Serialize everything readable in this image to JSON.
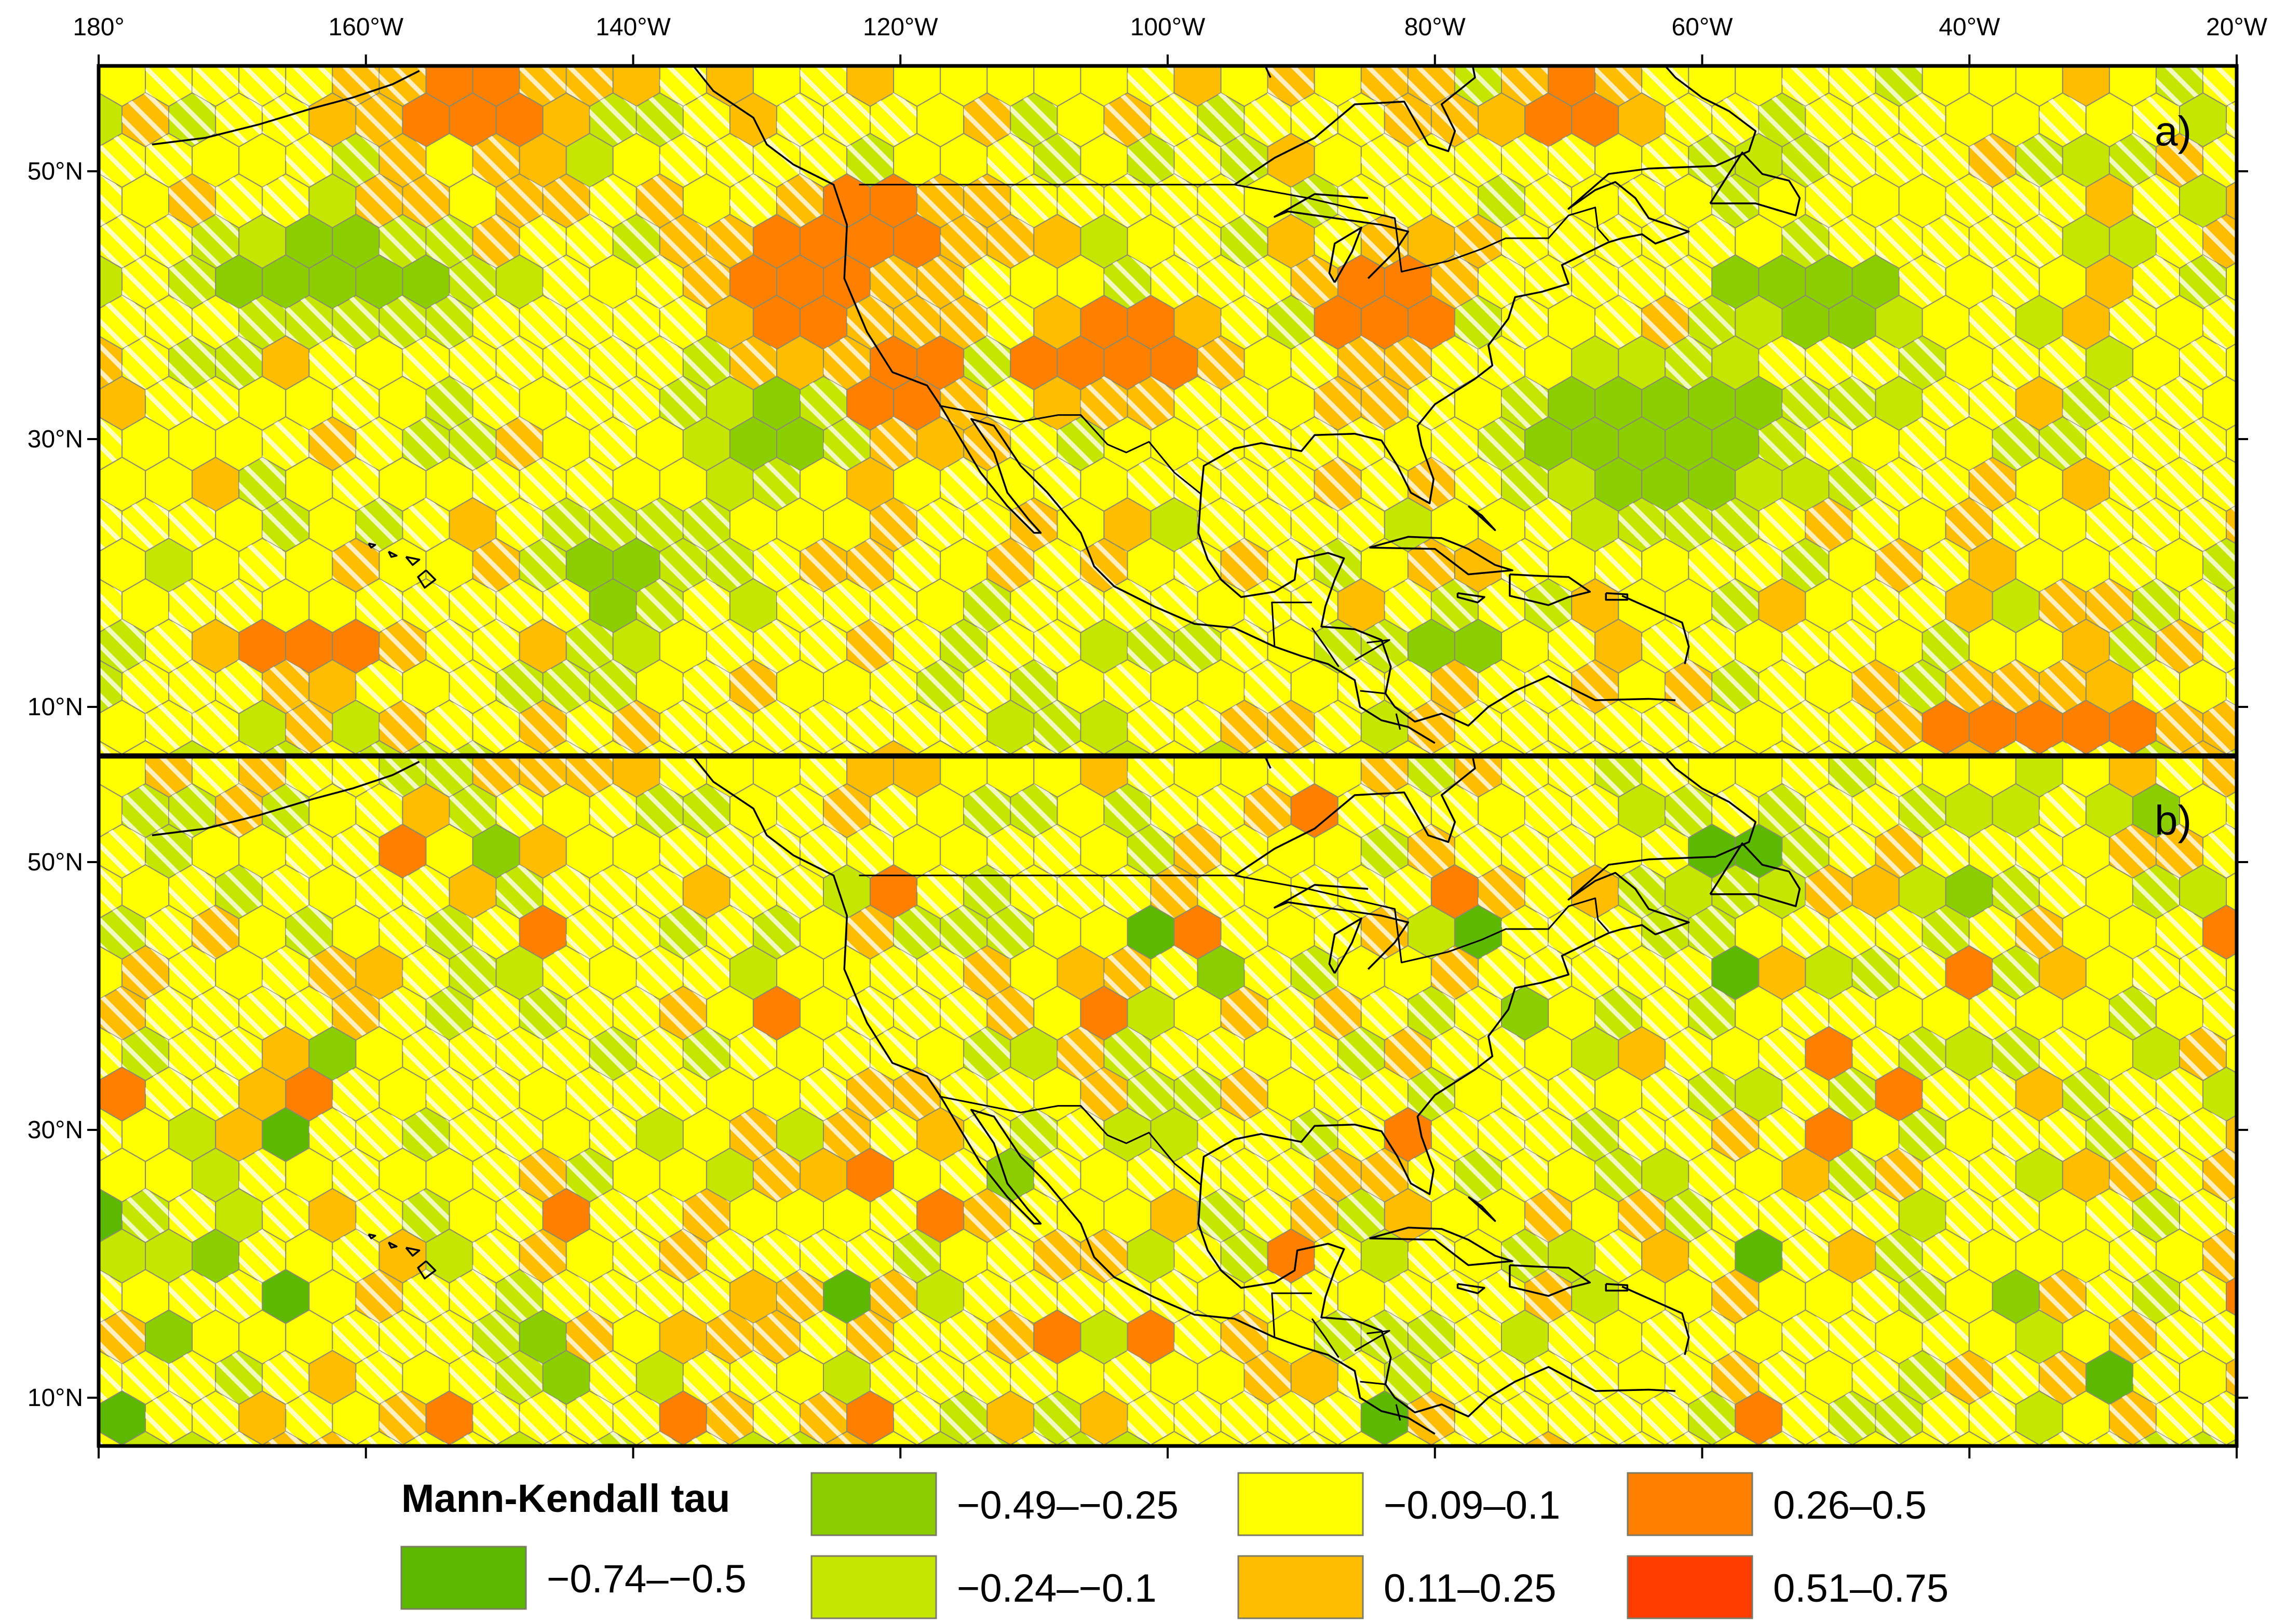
{
  "top_axis": {
    "lon_ticks": [
      {
        "lon": -180,
        "label": "180°"
      },
      {
        "lon": -160,
        "label": "160°W"
      },
      {
        "lon": -140,
        "label": "140°W"
      },
      {
        "lon": -120,
        "label": "120°W"
      },
      {
        "lon": -100,
        "label": "100°W"
      },
      {
        "lon": -80,
        "label": "80°W"
      },
      {
        "lon": -60,
        "label": "60°W"
      },
      {
        "lon": -40,
        "label": "40°W"
      },
      {
        "lon": -20,
        "label": "20°W"
      }
    ]
  },
  "lat_ticks": [
    {
      "lat": 50,
      "label": "50°N"
    },
    {
      "lat": 30,
      "label": "30°N"
    },
    {
      "lat": 10,
      "label": "10°N"
    }
  ],
  "panels": [
    {
      "label": "a)"
    },
    {
      "label": "b)"
    }
  ],
  "legend": {
    "title": "Mann-Kendall tau",
    "classes": [
      {
        "label": "−0.74–−0.5",
        "color": "#5cb800"
      },
      {
        "label": "−0.49–−0.25",
        "color": "#8ccf00"
      },
      {
        "label": "−0.24–−0.1",
        "color": "#c4e600"
      },
      {
        "label": "−0.09–0.1",
        "color": "#ffff00"
      },
      {
        "label": "0.11–0.25",
        "color": "#ffbd00"
      },
      {
        "label": "0.26–0.5",
        "color": "#ff8000"
      },
      {
        "label": "0.51–0.75",
        "color": "#ff3c00"
      }
    ]
  },
  "colors": {
    "hatch": "#ffffff",
    "hex_outline": "#8a8a66",
    "coastline": "#000000",
    "frame": "#000000"
  }
}
